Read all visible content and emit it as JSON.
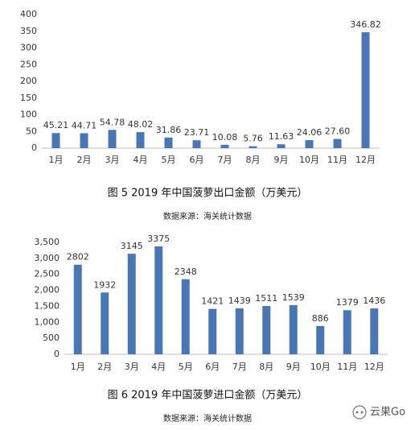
{
  "chart_data": [
    {
      "type": "bar",
      "title": "图 5 2019 年中国菠萝出口金额（万美元）",
      "source": "数据来源：海关统计数据",
      "categories": [
        "1月",
        "2月",
        "3月",
        "4月",
        "5月",
        "6月",
        "7月",
        "8月",
        "9月",
        "10月",
        "11月",
        "12月"
      ],
      "values": [
        45.21,
        44.71,
        54.78,
        48.02,
        31.86,
        23.71,
        10.08,
        5.76,
        11.63,
        24.06,
        27.6,
        346.82
      ],
      "value_labels": [
        "45.21",
        "44.71",
        "54.78",
        "48.02",
        "31.86",
        "23.71",
        "10.08",
        "5.76",
        "11.63",
        "24.06",
        "27.60",
        "346.82"
      ],
      "color": "#4a76b4",
      "ylim": [
        0,
        400
      ],
      "yticks": [
        0,
        50,
        100,
        150,
        200,
        250,
        300,
        350,
        400
      ],
      "grid": false
    },
    {
      "type": "bar",
      "title": "图 6 2019 年中国菠萝进口金额（万美元）",
      "source": "数据来源：海关统计数据",
      "categories": [
        "1月",
        "2月",
        "3月",
        "4月",
        "5月",
        "6月",
        "7月",
        "8月",
        "9月",
        "10月",
        "11月",
        "12月"
      ],
      "values": [
        2802,
        1932,
        3145,
        3375,
        2348,
        1421,
        1439,
        1511,
        1539,
        886,
        1379,
        1436
      ],
      "color": "#4a76b4",
      "ylim": [
        0,
        3500
      ],
      "yticks": [
        0,
        {
          "value": 500,
          "label": "500"
        },
        {
          "value": 1000,
          "label": "1,000"
        },
        {
          "value": 1500,
          "label": "1,500"
        },
        {
          "value": 2000,
          "label": "2,000"
        },
        {
          "value": 2500,
          "label": "2,500"
        },
        {
          "value": 3000,
          "label": "3,000"
        },
        {
          "value": 3500,
          "label": "3,500"
        }
      ],
      "grid": false
    }
  ],
  "watermark": "云果Go"
}
